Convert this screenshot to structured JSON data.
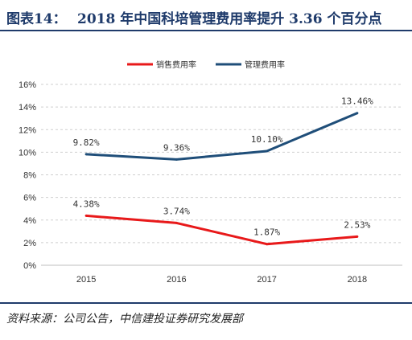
{
  "header": {
    "label": "图表14：",
    "title": "2018 年中国科培管理费用率提升 3.36 个百分点"
  },
  "footer": {
    "source": "资料来源：公司公告，中信建投证券研究发展部"
  },
  "chart_data": {
    "type": "line",
    "categories": [
      "2015",
      "2016",
      "2017",
      "2018"
    ],
    "series": [
      {
        "name": "销售费用率",
        "color": "#e8191a",
        "values": [
          4.38,
          3.74,
          1.87,
          2.53
        ],
        "labels": [
          "4.38%",
          "3.74%",
          "1.87%",
          "2.53%"
        ]
      },
      {
        "name": "管理费用率",
        "color": "#1f4e79",
        "values": [
          9.82,
          9.36,
          10.1,
          13.46
        ],
        "labels": [
          "9.82%",
          "9.36%",
          "10.10%",
          "13.46%"
        ]
      }
    ],
    "y_ticks": [
      "0%",
      "2%",
      "4%",
      "6%",
      "8%",
      "10%",
      "12%",
      "14%",
      "16%"
    ],
    "ylim": [
      0,
      16
    ],
    "grid": "horizontal dashed",
    "legend_position": "top"
  }
}
